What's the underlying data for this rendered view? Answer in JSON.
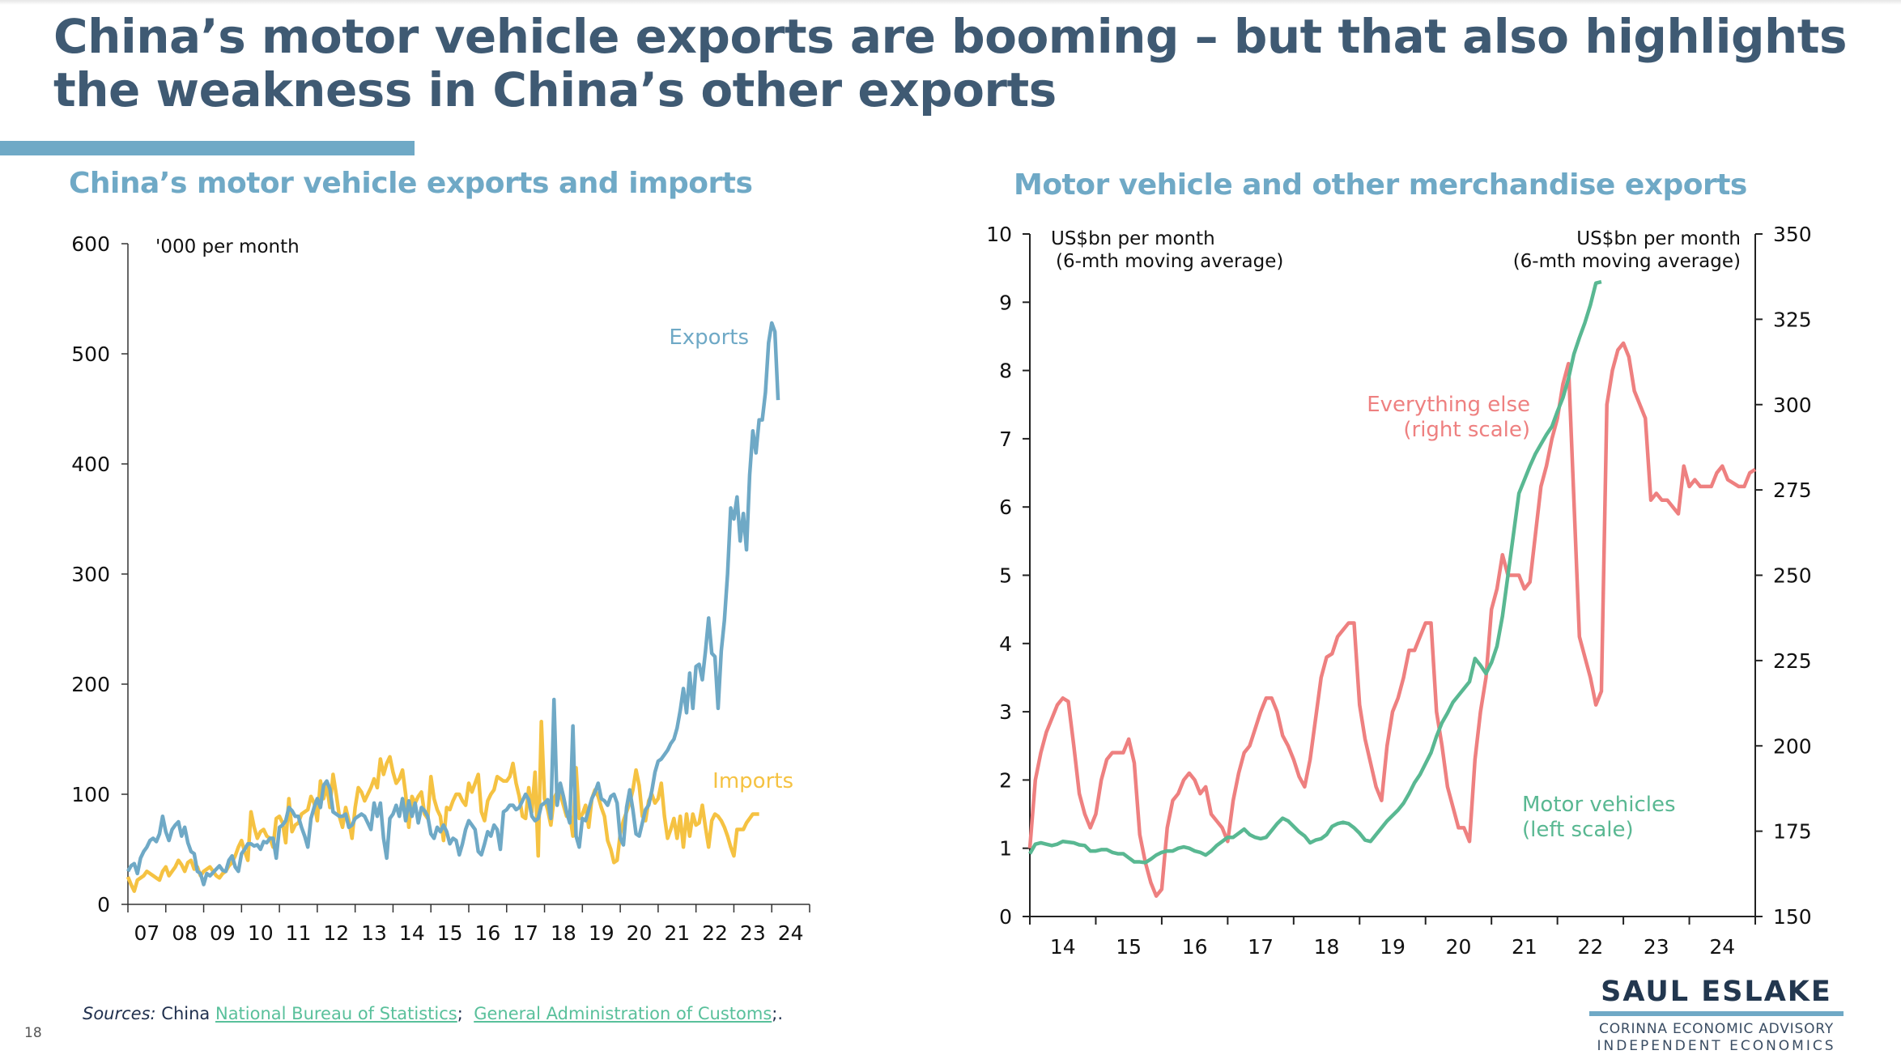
{
  "slide": {
    "title": "China’s motor vehicle exports are booming – but that also highlights the weakness in China’s other exports",
    "page_number": "18",
    "sources": {
      "prefix": "Sources:",
      "country": "China",
      "link1": "National Bureau of Statistics",
      "sep": ";",
      "link2": "General Administration of Customs",
      "suffix": ";."
    },
    "logo": {
      "name": "SAUL ESLAKE",
      "line1": "CORINNA ECONOMIC ADVISORY",
      "line2": "INDEPENDENT ECONOMICS"
    },
    "colors": {
      "title": "#3f5a73",
      "accent": "#6fa9c6",
      "exports": "#6fa9c6",
      "imports": "#f5c242",
      "motor_vehicles": "#59b892",
      "everything_else": "#ee8080",
      "link": "#59c09b"
    }
  },
  "chart_data": [
    {
      "type": "line",
      "title": "China’s motor vehicle exports and imports",
      "ylabel": "'000 per month",
      "xlabel": "",
      "ylim": [
        0,
        600
      ],
      "yticks": [
        0,
        100,
        200,
        300,
        400,
        500,
        600
      ],
      "xlim": [
        2007,
        2025
      ],
      "xtick_labels": [
        "07",
        "08",
        "09",
        "10",
        "11",
        "12",
        "13",
        "14",
        "15",
        "16",
        "17",
        "18",
        "19",
        "20",
        "21",
        "22",
        "23",
        "24"
      ],
      "grid": false,
      "frequency": "monthly",
      "start": 2007.0,
      "series": [
        {
          "name": "Exports",
          "label": "Exports",
          "values": [
            30,
            35,
            37,
            28,
            42,
            48,
            52,
            58,
            60,
            57,
            64,
            80,
            66,
            58,
            68,
            72,
            75,
            62,
            70,
            56,
            48,
            46,
            30,
            28,
            18,
            28,
            26,
            29,
            32,
            35,
            31,
            30,
            40,
            44,
            34,
            30,
            46,
            50,
            55,
            55,
            53,
            54,
            50,
            57,
            56,
            60,
            60,
            42,
            70,
            72,
            76,
            88,
            85,
            80,
            80,
            70,
            62,
            52,
            78,
            88,
            96,
            88,
            108,
            112,
            105,
            84,
            82,
            80,
            80,
            82,
            70,
            72,
            78,
            80,
            82,
            80,
            74,
            68,
            92,
            80,
            92,
            60,
            42,
            78,
            82,
            90,
            80,
            96,
            76,
            94,
            80,
            92,
            74,
            88,
            85,
            80,
            64,
            60,
            70,
            66,
            72,
            66,
            55,
            60,
            58,
            45,
            55,
            68,
            76,
            72,
            68,
            48,
            45,
            55,
            66,
            62,
            72,
            68,
            50,
            84,
            86,
            90,
            90,
            86,
            88,
            94,
            100,
            95,
            80,
            76,
            78,
            90,
            92,
            95,
            78,
            186,
            90,
            110,
            98,
            84,
            74,
            162,
            62,
            52,
            78,
            76,
            86,
            96,
            102,
            110,
            96,
            94,
            90,
            98,
            100,
            92,
            60,
            54,
            88,
            104,
            86,
            64,
            62,
            74,
            86,
            90,
            103,
            120,
            130,
            132,
            136,
            140,
            146,
            150,
            160,
            176,
            196,
            174,
            210,
            178,
            216,
            218,
            204,
            230,
            260,
            228,
            225,
            178,
            230,
            258,
            300,
            360,
            350,
            370,
            330,
            355,
            322,
            390,
            430,
            410,
            440,
            440,
            465,
            510,
            528,
            520,
            458
          ]
        },
        {
          "name": "Imports",
          "label": "Imports",
          "values": [
            25,
            18,
            12,
            22,
            24,
            26,
            30,
            28,
            26,
            24,
            22,
            30,
            34,
            26,
            30,
            34,
            40,
            36,
            30,
            38,
            40,
            32,
            34,
            26,
            30,
            32,
            34,
            30,
            26,
            24,
            28,
            30,
            35,
            38,
            44,
            52,
            58,
            48,
            40,
            84,
            70,
            60,
            66,
            68,
            62,
            60,
            52,
            78,
            80,
            74,
            56,
            96,
            66,
            72,
            74,
            82,
            84,
            86,
            98,
            92,
            76,
            112,
            96,
            108,
            88,
            118,
            100,
            80,
            70,
            88,
            76,
            60,
            88,
            106,
            102,
            94,
            100,
            106,
            114,
            106,
            132,
            118,
            128,
            134,
            120,
            110,
            114,
            122,
            100,
            70,
            98,
            92,
            98,
            102,
            82,
            78,
            116,
            96,
            86,
            80,
            58,
            88,
            86,
            94,
            100,
            100,
            94,
            90,
            110,
            102,
            110,
            118,
            84,
            76,
            94,
            100,
            104,
            116,
            114,
            112,
            112,
            116,
            128,
            110,
            98,
            80,
            78,
            106,
            84,
            120,
            44,
            166,
            96,
            86,
            72,
            96,
            102,
            100,
            90,
            80,
            82,
            62,
            124,
            78,
            82,
            90,
            70,
            96,
            104,
            98,
            88,
            80,
            58,
            50,
            38,
            40,
            64,
            76,
            84,
            92,
            104,
            122,
            108,
            80,
            76,
            94,
            100,
            92,
            96,
            110,
            80,
            60,
            68,
            78,
            60,
            80,
            52,
            82,
            62,
            82,
            72,
            74,
            90,
            70,
            52,
            76,
            82,
            80,
            76,
            70,
            62,
            52,
            44,
            68,
            68,
            68,
            74,
            78,
            82,
            82,
            82
          ]
        }
      ],
      "annotations": [
        "Exports",
        "Imports"
      ]
    },
    {
      "type": "line",
      "title": "Motor vehicle and other merchandise exports",
      "ylabel_left": "US$bn per month (6-mth moving average)",
      "ylabel_right": "US$bn per month (6-mth moving average)",
      "ylim_left": [
        0,
        10
      ],
      "ylim_right": [
        150,
        350
      ],
      "yticks_left": [
        0,
        1,
        2,
        3,
        4,
        5,
        6,
        7,
        8,
        9,
        10
      ],
      "yticks_right": [
        150,
        175,
        200,
        225,
        250,
        275,
        300,
        325,
        350
      ],
      "xlim": [
        2014,
        2025
      ],
      "xtick_labels": [
        "14",
        "15",
        "16",
        "17",
        "18",
        "19",
        "20",
        "21",
        "22",
        "23",
        "24"
      ],
      "grid": false,
      "frequency": "monthly",
      "start": 2014.0,
      "series": [
        {
          "name": "Motor vehicles",
          "label": "Motor vehicles (left scale)",
          "axis": "left",
          "values": [
            0.92,
            1.06,
            1.08,
            1.06,
            1.04,
            1.06,
            1.1,
            1.09,
            1.08,
            1.05,
            1.04,
            0.96,
            0.96,
            0.98,
            0.98,
            0.94,
            0.92,
            0.92,
            0.86,
            0.8,
            0.8,
            0.79,
            0.84,
            0.9,
            0.94,
            0.96,
            0.96,
            1.0,
            1.02,
            1.0,
            0.96,
            0.94,
            0.9,
            0.96,
            1.04,
            1.1,
            1.16,
            1.16,
            1.22,
            1.28,
            1.2,
            1.16,
            1.14,
            1.16,
            1.26,
            1.36,
            1.44,
            1.4,
            1.32,
            1.24,
            1.18,
            1.08,
            1.12,
            1.14,
            1.2,
            1.32,
            1.36,
            1.38,
            1.36,
            1.3,
            1.22,
            1.12,
            1.1,
            1.2,
            1.3,
            1.4,
            1.48,
            1.56,
            1.66,
            1.8,
            1.96,
            2.08,
            2.24,
            2.4,
            2.64,
            2.84,
            2.98,
            3.14,
            3.24,
            3.34,
            3.44,
            3.78,
            3.68,
            3.56,
            3.72,
            3.96,
            4.4,
            5.0,
            5.6,
            6.2,
            6.4,
            6.6,
            6.78,
            6.92,
            7.06,
            7.18,
            7.4,
            7.6,
            7.88,
            8.24,
            8.48,
            8.7,
            8.96,
            9.28,
            9.3
          ]
        },
        {
          "name": "Everything else",
          "label": "Everything else (right scale)",
          "axis": "right",
          "values": [
            170,
            190,
            198,
            204,
            208,
            212,
            214,
            213,
            200,
            186,
            180,
            176,
            180,
            190,
            196,
            198,
            198,
            198,
            202,
            195,
            174,
            166,
            160,
            156,
            158,
            176,
            184,
            186,
            190,
            192,
            190,
            186,
            188,
            180,
            178,
            176,
            172,
            184,
            192,
            198,
            200,
            205,
            210,
            214,
            214,
            210,
            203,
            200,
            196,
            191,
            188,
            196,
            208,
            220,
            226,
            227,
            232,
            234,
            236,
            236,
            212,
            202,
            195,
            188,
            184,
            200,
            210,
            214,
            220,
            228,
            228,
            232,
            236,
            236,
            210,
            200,
            188,
            182,
            176,
            176,
            172,
            196,
            210,
            220,
            240,
            246,
            256,
            250,
            250,
            250,
            246,
            248,
            262,
            276,
            282,
            290,
            296,
            306,
            312,
            272,
            232,
            226,
            220,
            212,
            216,
            300,
            310,
            316,
            318,
            314,
            304,
            300,
            296,
            272,
            274,
            272,
            272,
            270,
            268,
            282,
            276,
            278,
            276,
            276,
            276,
            280,
            282,
            278,
            277,
            276,
            276,
            280,
            281
          ]
        }
      ],
      "annotations": [
        "Everything else (right scale)",
        "Motor vehicles (left scale)"
      ]
    }
  ]
}
